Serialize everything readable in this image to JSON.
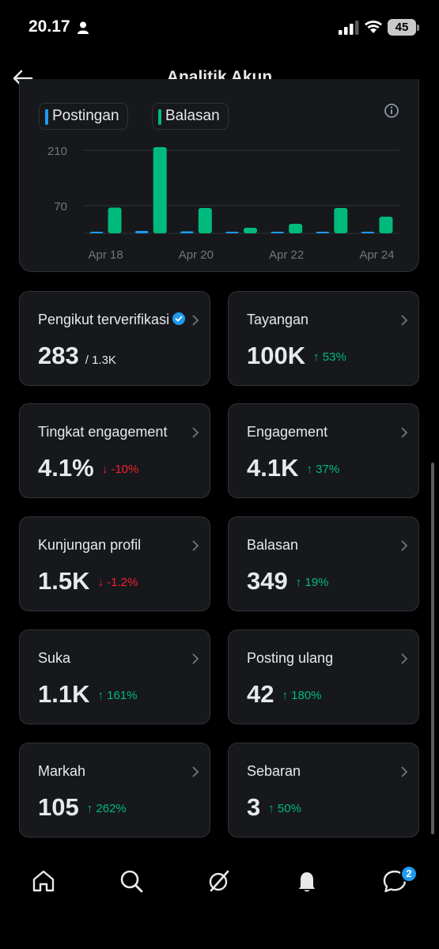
{
  "status_bar": {
    "time": "20.17",
    "battery": "45"
  },
  "header": {
    "title": "Analitik Akun"
  },
  "chart_card": {
    "legend": [
      {
        "label": "Postingan",
        "color": "#1d9bf0"
      },
      {
        "label": "Balasan",
        "color": "#00ba7c"
      }
    ]
  },
  "chart_data": {
    "type": "bar",
    "categories": [
      "Apr 18",
      "Apr 19",
      "Apr 20",
      "Apr 21",
      "Apr 22",
      "Apr 23",
      "Apr 24"
    ],
    "x_tick_labels": [
      "Apr 18",
      "Apr 20",
      "Apr 22",
      "Apr 24"
    ],
    "y_tick_labels": [
      "210",
      "70"
    ],
    "y_ticks": [
      210,
      70
    ],
    "ylim": [
      0,
      230
    ],
    "series": [
      {
        "name": "Postingan",
        "color": "#1d9bf0",
        "values": [
          2,
          6,
          5,
          1,
          1,
          2,
          1
        ]
      },
      {
        "name": "Balasan",
        "color": "#00ba7c",
        "values": [
          65,
          218,
          64,
          14,
          24,
          64,
          42
        ]
      }
    ],
    "grid": true
  },
  "stats": [
    {
      "label": "Pengikut terverifikasi",
      "value": "283",
      "total": "/ 1.3K",
      "verified": true
    },
    {
      "label": "Tayangan",
      "value": "100K",
      "change": "↑ 53%",
      "direction": "up"
    },
    {
      "label": "Tingkat engagement",
      "value": "4.1%",
      "change": "↓ -10%",
      "direction": "down"
    },
    {
      "label": "Engagement",
      "value": "4.1K",
      "change": "↑ 37%",
      "direction": "up"
    },
    {
      "label": "Kunjungan profil",
      "value": "1.5K",
      "change": "↓ -1.2%",
      "direction": "down"
    },
    {
      "label": "Balasan",
      "value": "349",
      "change": "↑ 19%",
      "direction": "up"
    },
    {
      "label": "Suka",
      "value": "1.1K",
      "change": "↑ 161%",
      "direction": "up"
    },
    {
      "label": "Posting ulang",
      "value": "42",
      "change": "↑ 180%",
      "direction": "up"
    },
    {
      "label": "Markah",
      "value": "105",
      "change": "↑ 262%",
      "direction": "up"
    },
    {
      "label": "Sebaran",
      "value": "3",
      "change": "↑ 50%",
      "direction": "up"
    }
  ],
  "bottom_nav": {
    "items": [
      "home-icon",
      "search-icon",
      "grok-icon",
      "notifications-icon",
      "messages-icon"
    ],
    "messages_badge": "2"
  }
}
